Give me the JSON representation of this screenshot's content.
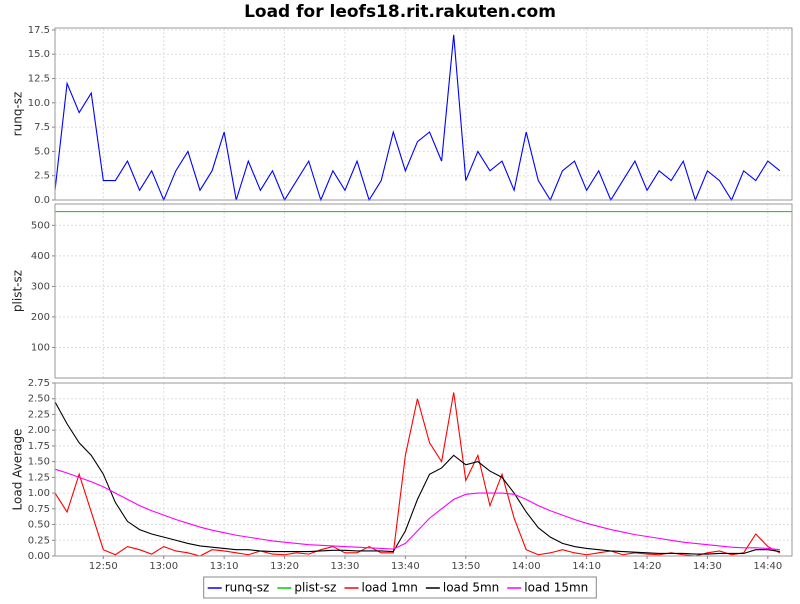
{
  "chart_data": [
    {
      "type": "line",
      "title": "Load for leofs18.rit.rakuten.com",
      "ylabel": "runq-sz",
      "x": [
        "12:42",
        "12:44",
        "12:46",
        "12:48",
        "12:50",
        "12:52",
        "12:54",
        "12:56",
        "12:58",
        "13:00",
        "13:02",
        "13:04",
        "13:06",
        "13:08",
        "13:10",
        "13:12",
        "13:14",
        "13:16",
        "13:18",
        "13:20",
        "13:22",
        "13:24",
        "13:26",
        "13:28",
        "13:30",
        "13:32",
        "13:34",
        "13:36",
        "13:38",
        "13:40",
        "13:42",
        "13:44",
        "13:46",
        "13:48",
        "13:50",
        "13:52",
        "13:54",
        "13:56",
        "13:58",
        "14:00",
        "14:02",
        "14:04",
        "14:06",
        "14:08",
        "14:10",
        "14:12",
        "14:14",
        "14:16",
        "14:18",
        "14:20",
        "14:22",
        "14:24",
        "14:26",
        "14:28",
        "14:30",
        "14:32",
        "14:34",
        "14:36",
        "14:38",
        "14:40",
        "14:42"
      ],
      "series": [
        {
          "name": "runq-sz",
          "color": "#0000ff",
          "values": [
            1,
            12,
            9,
            11,
            2,
            2,
            4,
            1,
            3,
            0,
            3,
            5,
            1,
            3,
            7,
            0,
            4,
            1,
            3,
            0,
            2,
            4,
            0,
            3,
            1,
            4,
            0,
            2,
            7,
            3,
            6,
            7,
            4,
            17,
            2,
            5,
            3,
            4,
            1,
            7,
            2,
            0,
            3,
            4,
            1,
            3,
            0,
            2,
            4,
            1,
            3,
            2,
            4,
            0,
            3,
            2,
            0,
            3,
            2,
            4,
            3
          ]
        }
      ],
      "ylim": [
        0,
        17.7
      ],
      "yticks": [
        {
          "value": 0,
          "label": "0.0"
        },
        2.5,
        {
          "value": 5,
          "label": "5.0"
        },
        7.5,
        {
          "value": 10,
          "label": "10.0"
        },
        12.5,
        {
          "value": 15,
          "label": "15.0"
        },
        17.5
      ],
      "grid": true
    },
    {
      "type": "line",
      "ylabel": "plist-sz",
      "x": [
        "12:42",
        "14:44"
      ],
      "series": [
        {
          "name": "plist-sz",
          "color": "#00cc00",
          "values": [
            545,
            545
          ]
        }
      ],
      "ylim": [
        0,
        570
      ],
      "yticks": [
        100,
        200,
        300,
        400,
        500
      ],
      "grid": true
    },
    {
      "type": "line",
      "ylabel": "Load Average",
      "x": [
        "12:42",
        "12:44",
        "12:46",
        "12:48",
        "12:50",
        "12:52",
        "12:54",
        "12:56",
        "12:58",
        "13:00",
        "13:02",
        "13:04",
        "13:06",
        "13:08",
        "13:10",
        "13:12",
        "13:14",
        "13:16",
        "13:18",
        "13:20",
        "13:22",
        "13:24",
        "13:26",
        "13:28",
        "13:30",
        "13:32",
        "13:34",
        "13:36",
        "13:38",
        "13:40",
        "13:42",
        "13:44",
        "13:46",
        "13:48",
        "13:50",
        "13:52",
        "13:54",
        "13:56",
        "13:58",
        "14:00",
        "14:02",
        "14:04",
        "14:06",
        "14:08",
        "14:10",
        "14:12",
        "14:14",
        "14:16",
        "14:18",
        "14:20",
        "14:22",
        "14:24",
        "14:26",
        "14:28",
        "14:30",
        "14:32",
        "14:34",
        "14:36",
        "14:38",
        "14:40",
        "14:42"
      ],
      "series": [
        {
          "name": "load 1mn",
          "color": "#ff0000",
          "values": [
            1.0,
            0.7,
            1.3,
            0.7,
            0.1,
            0.02,
            0.15,
            0.1,
            0.03,
            0.15,
            0.08,
            0.05,
            0.0,
            0.1,
            0.08,
            0.05,
            0.02,
            0.08,
            0.03,
            0.02,
            0.05,
            0.03,
            0.1,
            0.15,
            0.05,
            0.05,
            0.15,
            0.05,
            0.05,
            1.6,
            2.5,
            1.8,
            1.5,
            2.6,
            1.2,
            1.6,
            0.8,
            1.3,
            0.6,
            0.1,
            0.02,
            0.05,
            0.1,
            0.05,
            0.02,
            0.05,
            0.08,
            0.02,
            0.05,
            0.03,
            0.02,
            0.05,
            0.02,
            0.0,
            0.05,
            0.08,
            0.02,
            0.05,
            0.35,
            0.15,
            0.05
          ]
        },
        {
          "name": "load 5mn",
          "color": "#000000",
          "values": [
            2.45,
            2.1,
            1.8,
            1.6,
            1.3,
            0.85,
            0.55,
            0.42,
            0.35,
            0.3,
            0.25,
            0.2,
            0.16,
            0.14,
            0.12,
            0.1,
            0.1,
            0.08,
            0.07,
            0.07,
            0.07,
            0.07,
            0.08,
            0.09,
            0.09,
            0.08,
            0.08,
            0.08,
            0.07,
            0.4,
            0.9,
            1.3,
            1.4,
            1.6,
            1.45,
            1.5,
            1.35,
            1.25,
            1.0,
            0.7,
            0.45,
            0.3,
            0.2,
            0.15,
            0.12,
            0.1,
            0.08,
            0.07,
            0.06,
            0.05,
            0.04,
            0.04,
            0.04,
            0.03,
            0.03,
            0.04,
            0.04,
            0.04,
            0.1,
            0.1,
            0.07
          ]
        },
        {
          "name": "load 15mn",
          "color": "#ff00ff",
          "values": [
            1.38,
            1.32,
            1.25,
            1.18,
            1.1,
            1.0,
            0.9,
            0.8,
            0.72,
            0.65,
            0.58,
            0.52,
            0.46,
            0.41,
            0.37,
            0.33,
            0.3,
            0.27,
            0.24,
            0.22,
            0.2,
            0.18,
            0.17,
            0.16,
            0.15,
            0.14,
            0.13,
            0.12,
            0.11,
            0.2,
            0.4,
            0.6,
            0.75,
            0.9,
            0.98,
            1.0,
            1.0,
            1.0,
            0.98,
            0.9,
            0.8,
            0.72,
            0.65,
            0.58,
            0.52,
            0.47,
            0.42,
            0.38,
            0.34,
            0.31,
            0.28,
            0.25,
            0.22,
            0.2,
            0.18,
            0.16,
            0.14,
            0.13,
            0.13,
            0.12,
            0.1
          ]
        }
      ],
      "ylim": [
        0,
        2.75
      ],
      "yticks": [
        {
          "value": 0,
          "label": "0.00"
        },
        0.25,
        {
          "value": 0.5,
          "label": "0.50"
        },
        0.75,
        {
          "value": 1,
          "label": "1.00"
        },
        1.25,
        {
          "value": 1.5,
          "label": "1.50"
        },
        1.75,
        {
          "value": 2,
          "label": "2.00"
        },
        2.25,
        {
          "value": 2.5,
          "label": "2.50"
        },
        2.75
      ],
      "xlim": [
        "12:42",
        "14:44"
      ],
      "xticks": [
        "12:50",
        "13:00",
        "13:10",
        "13:20",
        "13:30",
        "13:40",
        "13:50",
        "14:00",
        "14:10",
        "14:20",
        "14:30",
        "14:40"
      ],
      "grid": true
    }
  ]
}
